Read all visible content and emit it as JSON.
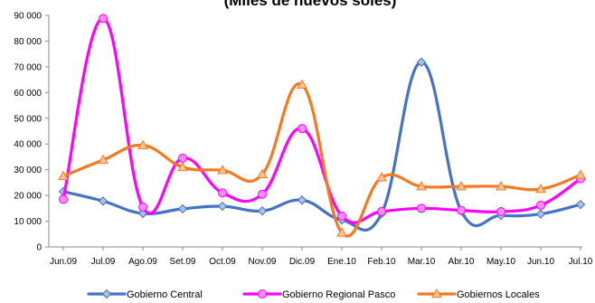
{
  "chart_data": {
    "type": "line",
    "title": "(Miles de nuevos soles)",
    "xlabel": "",
    "ylabel": "",
    "categories": [
      "Jun.09",
      "Jul.09",
      "Ago.09",
      "Set.09",
      "Oct.09",
      "Nov.09",
      "Dic.09",
      "Ene.10",
      "Feb.10",
      "Mar.10",
      "Abr.10",
      "May.10",
      "Jun.10",
      "Jul.10"
    ],
    "ylim": [
      0,
      90000
    ],
    "yticks": [
      0,
      10000,
      20000,
      30000,
      40000,
      50000,
      60000,
      70000,
      80000,
      90000
    ],
    "ytick_labels": [
      "0",
      "10 000",
      "20 000",
      "30 000",
      "40 000",
      "50 000",
      "60 000",
      "70 000",
      "80 000",
      "90 000"
    ],
    "grid": false,
    "legend_position": "bottom",
    "series": [
      {
        "name": "Gobierno Central",
        "color": "#4472C4",
        "marker": "diamond",
        "values": [
          21500,
          17800,
          13000,
          14800,
          15800,
          14000,
          18200,
          10500,
          13000,
          71800,
          14000,
          12200,
          12800,
          16500
        ]
      },
      {
        "name": "Gobierno Regional Pasco",
        "color": "#FF00FF",
        "marker": "circle",
        "values": [
          18500,
          88800,
          15500,
          34500,
          21000,
          20500,
          46000,
          12000,
          13800,
          15000,
          14200,
          13700,
          16200,
          26500
        ]
      },
      {
        "name": "Gobiernos Locales",
        "color": "#F47920",
        "marker": "triangle",
        "values": [
          27500,
          33800,
          39500,
          31000,
          29800,
          28200,
          63000,
          5500,
          27000,
          23500,
          23500,
          23500,
          22500,
          28000
        ]
      }
    ]
  }
}
